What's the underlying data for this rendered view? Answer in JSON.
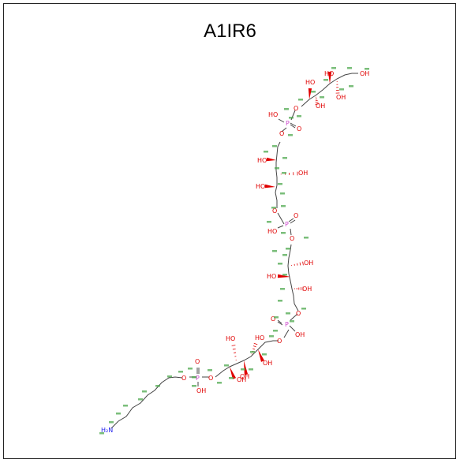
{
  "title": "A1IR6",
  "labels": {
    "hydroxyl": "OH",
    "hydroxyl_left": "HO",
    "oxygen": "O",
    "phosphorus": "P",
    "amine": "H₂N"
  },
  "colors": {
    "oxygen": "#e00000",
    "phosphorus": "#cc44cc",
    "nitrogen": "#2020ee",
    "atom_index": "#4ea84e",
    "bond": "#444444"
  }
}
